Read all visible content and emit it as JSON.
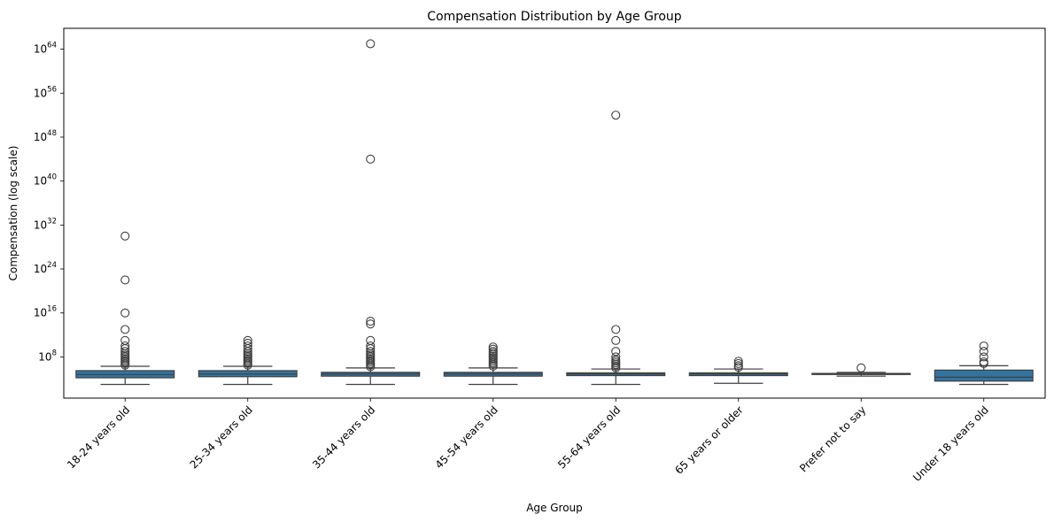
{
  "chart_data": {
    "type": "box",
    "title": "Compensation Distribution by Age Group",
    "xlabel": "Age Group",
    "ylabel": "Compensation (log scale)",
    "yscale": "log",
    "ylim_log10": [
      0.5,
      67.8
    ],
    "yticks": [
      {
        "base": "10",
        "exp": "8",
        "log10": 8
      },
      {
        "base": "10",
        "exp": "16",
        "log10": 16
      },
      {
        "base": "10",
        "exp": "24",
        "log10": 24
      },
      {
        "base": "10",
        "exp": "32",
        "log10": 32
      },
      {
        "base": "10",
        "exp": "40",
        "log10": 40
      },
      {
        "base": "10",
        "exp": "48",
        "log10": 48
      },
      {
        "base": "10",
        "exp": "56",
        "log10": 56
      },
      {
        "base": "10",
        "exp": "64",
        "log10": 64
      }
    ],
    "categories": [
      "18-24 years old",
      "25-34 years old",
      "35-44 years old",
      "45-54 years old",
      "55-64 years old",
      "65 years or older",
      "Prefer not to say",
      "Under 18 years old"
    ],
    "boxes_log10": [
      {
        "whislo": 3.0,
        "q1": 4.2,
        "median": 4.8,
        "q3": 5.5,
        "whishi": 6.3,
        "fliers": [
          6.5,
          6.8,
          7.1,
          7.4,
          7.7,
          8.0,
          8.3,
          8.6,
          9.0,
          9.5,
          10.0,
          11.0,
          13.0,
          16.0,
          22.0,
          30.0
        ]
      },
      {
        "whislo": 3.0,
        "q1": 4.4,
        "median": 4.9,
        "q3": 5.5,
        "whishi": 6.3,
        "fliers": [
          6.5,
          6.8,
          7.1,
          7.4,
          7.7,
          8.0,
          8.3,
          8.6,
          9.0,
          9.5,
          10.0,
          10.5,
          11.0
        ]
      },
      {
        "whislo": 3.0,
        "q1": 4.5,
        "median": 4.9,
        "q3": 5.2,
        "whishi": 6.0,
        "fliers": [
          6.2,
          6.5,
          6.8,
          7.1,
          7.4,
          7.7,
          8.0,
          8.3,
          8.6,
          9.0,
          9.5,
          10.0,
          11.0,
          14.0,
          14.5,
          44.0,
          65.0
        ]
      },
      {
        "whislo": 3.0,
        "q1": 4.5,
        "median": 4.9,
        "q3": 5.2,
        "whishi": 6.0,
        "fliers": [
          6.3,
          6.6,
          6.9,
          7.2,
          7.5,
          7.8,
          8.1,
          8.4,
          8.7,
          9.0,
          9.4,
          9.8
        ]
      },
      {
        "whislo": 3.0,
        "q1": 4.6,
        "median": 4.9,
        "q3": 5.1,
        "whishi": 5.8,
        "fliers": [
          6.0,
          6.3,
          6.6,
          6.9,
          7.2,
          7.5,
          8.0,
          9.0,
          11.0,
          13.0,
          52.0
        ]
      },
      {
        "whislo": 3.2,
        "q1": 4.6,
        "median": 4.9,
        "q3": 5.1,
        "whishi": 5.8,
        "fliers": [
          6.1,
          6.4,
          6.8,
          7.2
        ]
      },
      {
        "whislo": 4.5,
        "q1": 4.8,
        "median": 4.9,
        "q3": 5.0,
        "whishi": 5.2,
        "fliers": [
          6.0
        ]
      },
      {
        "whislo": 3.0,
        "q1": 3.6,
        "median": 4.3,
        "q3": 5.6,
        "whishi": 6.4,
        "fliers": [
          6.8,
          7.1,
          8.0,
          9.0,
          10.0
        ]
      }
    ],
    "color": "#3274a1",
    "grid": false,
    "legend": false
  }
}
